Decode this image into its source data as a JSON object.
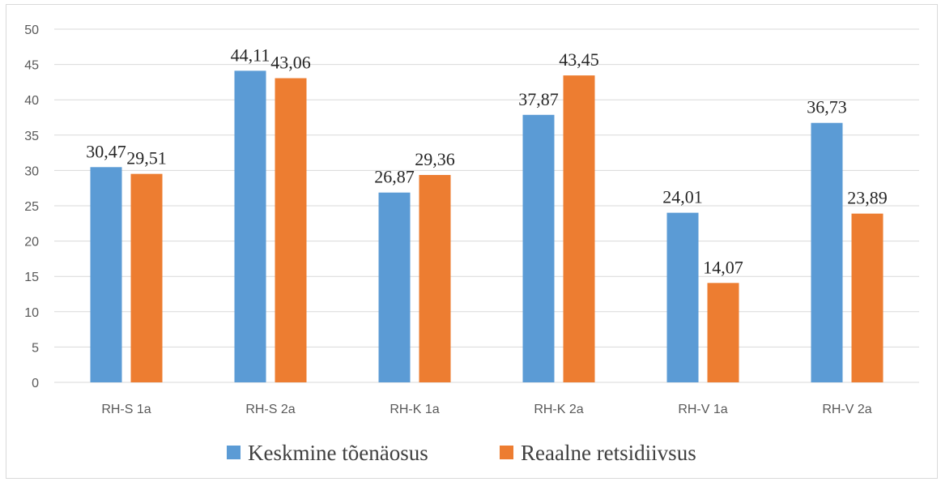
{
  "chart_data": {
    "type": "bar",
    "title": "",
    "xlabel": "",
    "ylabel": "",
    "categories": [
      "RH-S 1a",
      "RH-S 2a",
      "RH-K 1a",
      "RH-K 2a",
      "RH-V 1a",
      "RH-V 2a"
    ],
    "series": [
      {
        "name": "Keskmine tõenäosus",
        "color": "#5b9bd5",
        "values": [
          30.47,
          44.11,
          26.87,
          37.87,
          24.01,
          36.73
        ],
        "labels": [
          "30,47",
          "44,11",
          "26,87",
          "37,87",
          "24,01",
          "36,73"
        ]
      },
      {
        "name": "Reaalne retsidiivsus",
        "color": "#ed7d31",
        "values": [
          29.51,
          43.06,
          29.36,
          43.45,
          14.07,
          23.89
        ],
        "labels": [
          "29,51",
          "43,06",
          "29,36",
          "43,45",
          "14,07",
          "23,89"
        ]
      }
    ],
    "ylim": [
      0,
      50
    ],
    "yticks": [
      0,
      5,
      10,
      15,
      20,
      25,
      30,
      35,
      40,
      45,
      50
    ],
    "grid": true,
    "legend_position": "bottom"
  }
}
